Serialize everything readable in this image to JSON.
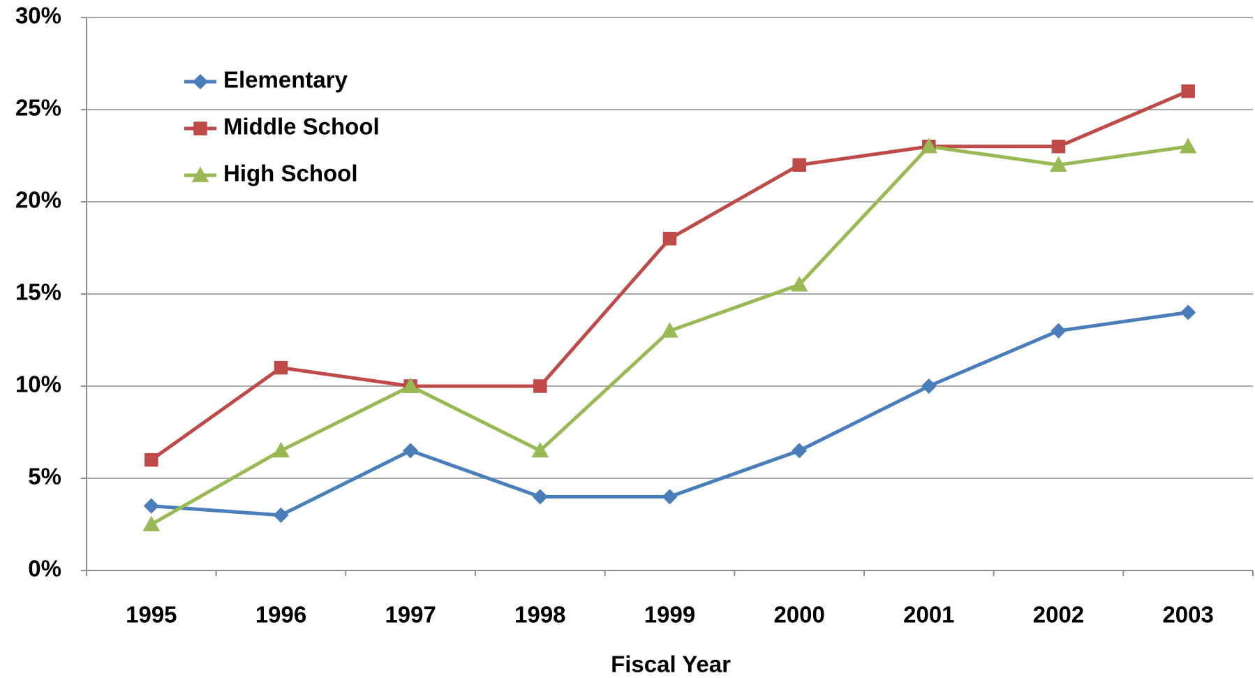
{
  "chart_data": {
    "type": "line",
    "xlabel": "Fiscal Year",
    "categories": [
      "1995",
      "1996",
      "1997",
      "1998",
      "1999",
      "2000",
      "2001",
      "2002",
      "2003"
    ],
    "series": [
      {
        "name": "Elementary",
        "color": "#4a7ebb",
        "marker": "diamond",
        "values": [
          3.5,
          3,
          6.5,
          4,
          4,
          6.5,
          10,
          13,
          14
        ]
      },
      {
        "name": "Middle School",
        "color": "#be4b48",
        "marker": "square",
        "values": [
          6,
          11,
          10,
          10,
          18,
          22,
          23,
          23,
          26
        ]
      },
      {
        "name": "High School",
        "color": "#98b954",
        "marker": "triangle",
        "values": [
          2.5,
          6.5,
          10,
          6.5,
          13,
          15.5,
          23,
          22,
          23
        ]
      }
    ],
    "ylim": [
      0,
      30
    ],
    "yticks": [
      {
        "value": 0,
        "label": "0%"
      },
      {
        "value": 5,
        "label": "5%"
      },
      {
        "value": 10,
        "label": "10%"
      },
      {
        "value": 15,
        "label": "15%"
      },
      {
        "value": 20,
        "label": "20%"
      },
      {
        "value": 25,
        "label": "25%"
      },
      {
        "value": 30,
        "label": "30%"
      }
    ],
    "grid": true,
    "legend": "upper left"
  }
}
